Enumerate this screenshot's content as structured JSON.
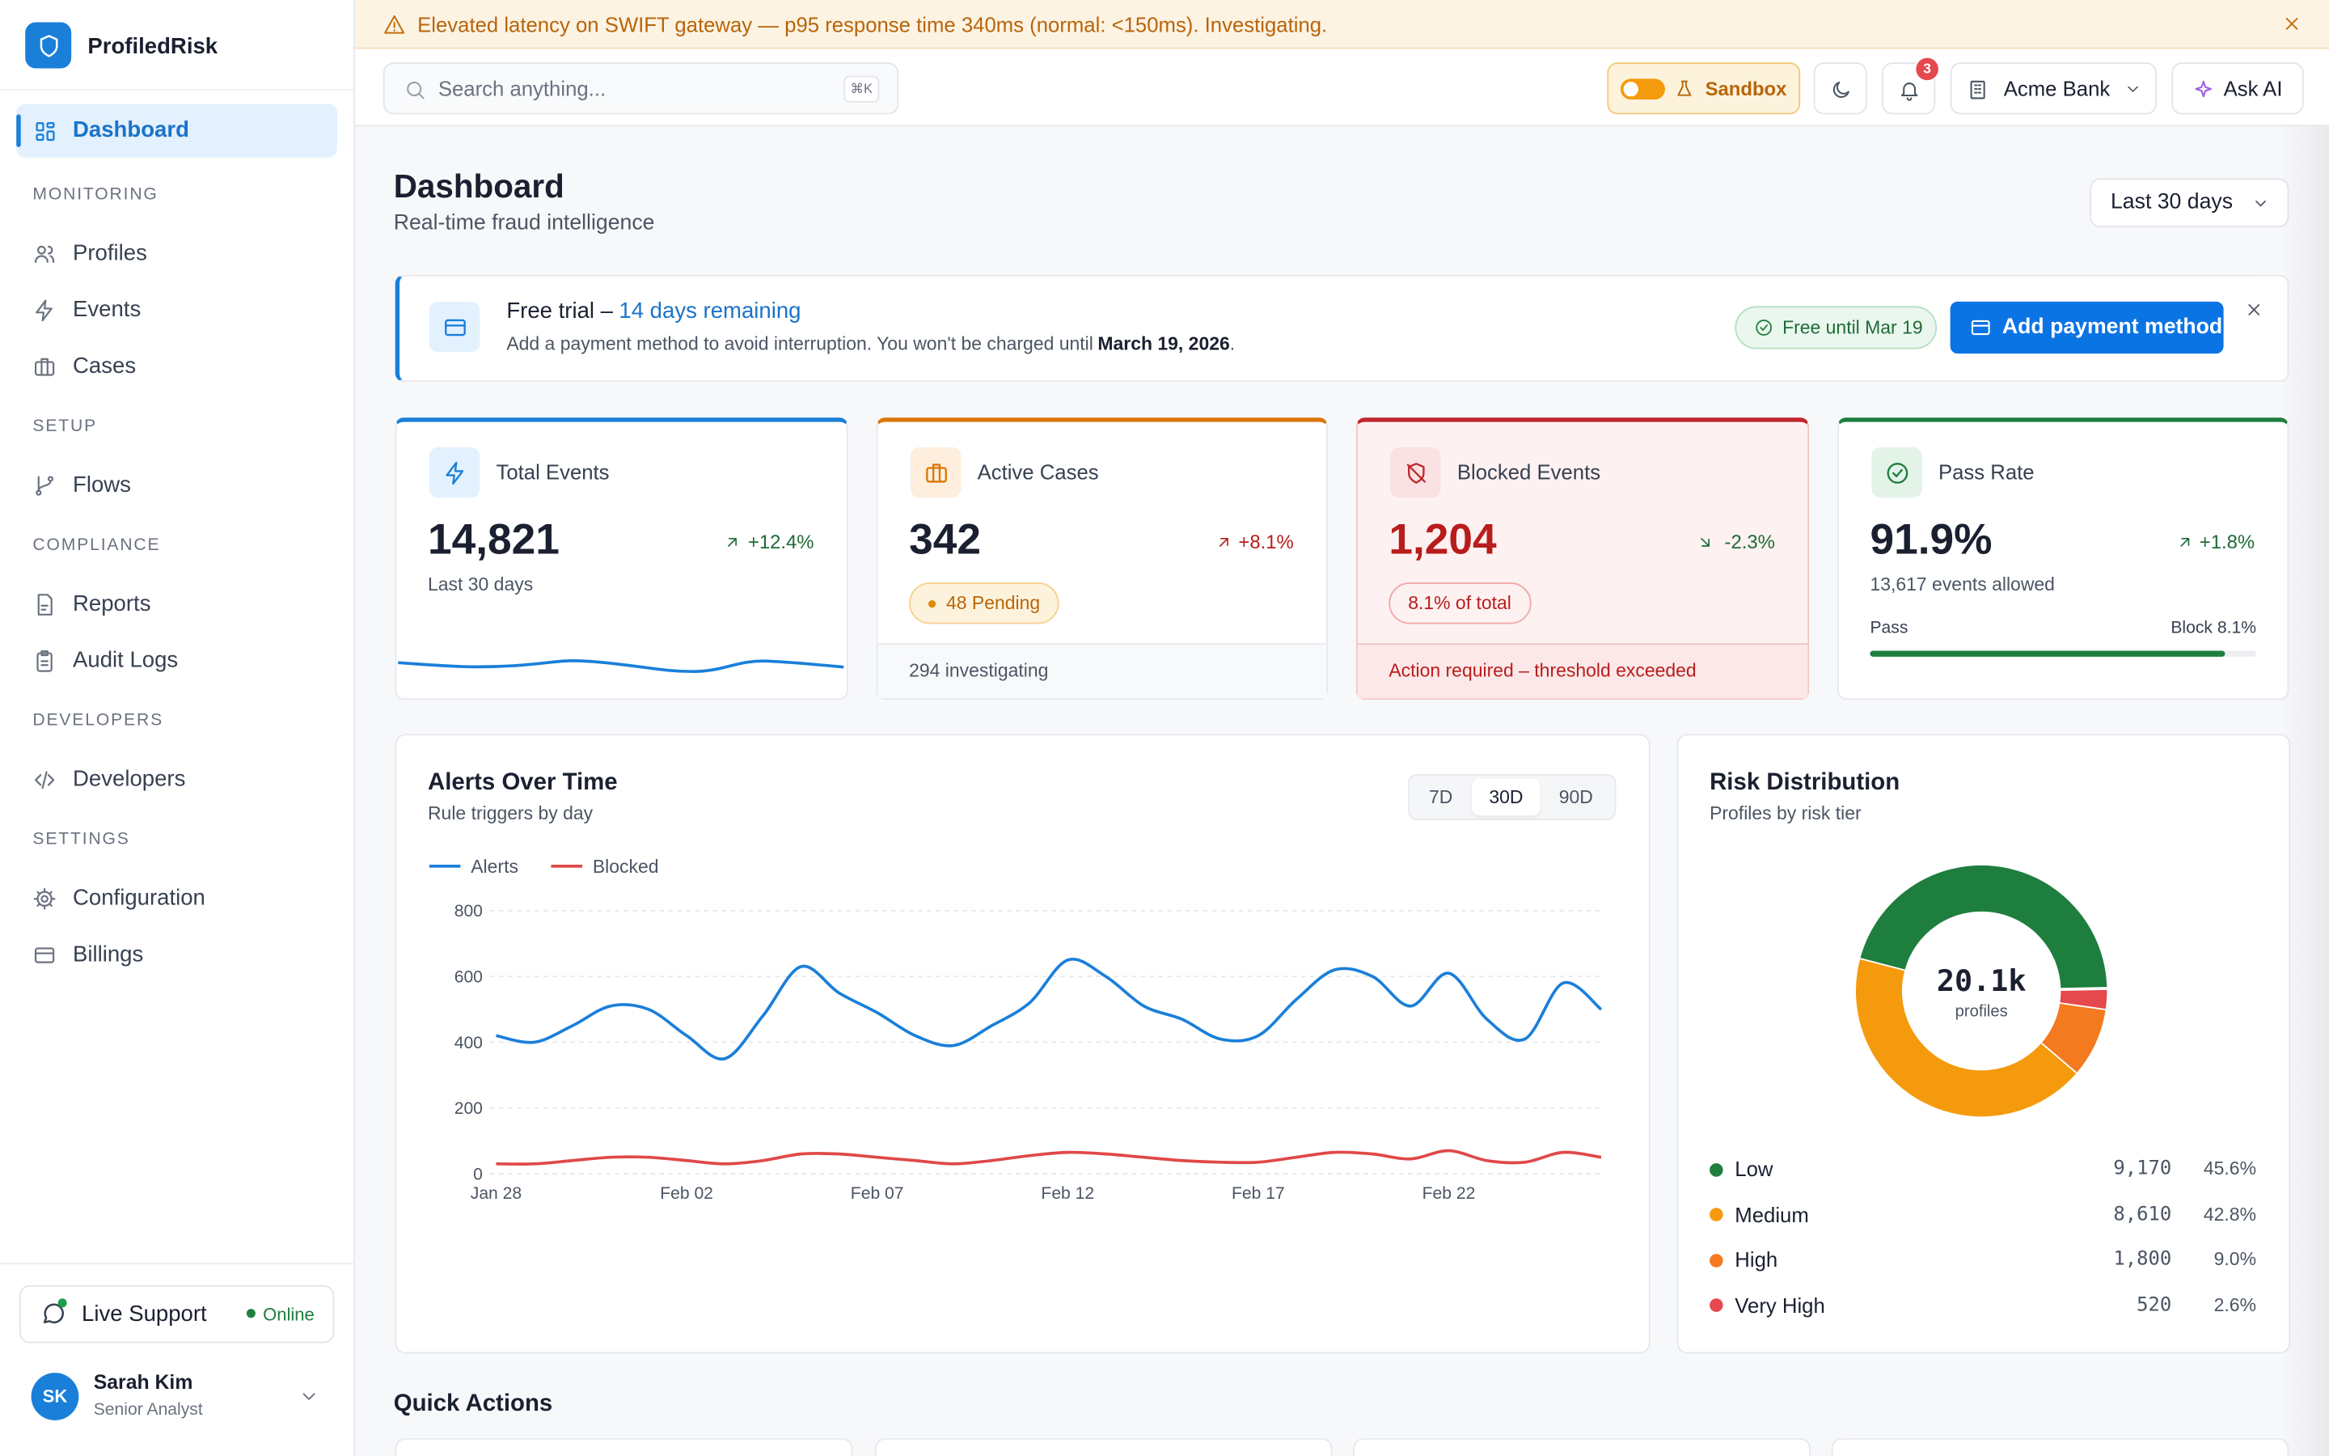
{
  "alert_banner": {
    "text": "Elevated latency on SWIFT gateway — p95 response time 340ms (normal: <150ms). Investigating."
  },
  "sidebar": {
    "brand": "ProfiledRisk",
    "active": "Dashboard",
    "sections": [
      {
        "title": "MONITORING",
        "items": [
          "Profiles",
          "Events",
          "Cases"
        ]
      },
      {
        "title": "SETUP",
        "items": [
          "Flows"
        ]
      },
      {
        "title": "COMPLIANCE",
        "items": [
          "Reports",
          "Audit Logs"
        ]
      },
      {
        "title": "DEVELOPERS",
        "items": [
          "Developers"
        ]
      },
      {
        "title": "SETTINGS",
        "items": [
          "Configuration",
          "Billings"
        ]
      }
    ],
    "support": {
      "label": "Live Support",
      "status": "Online"
    },
    "user": {
      "initials": "SK",
      "name": "Sarah Kim",
      "role": "Senior Analyst"
    }
  },
  "topbar": {
    "search": "Search anything...",
    "shortcut": "⌘K",
    "sandbox": "Sandbox",
    "notifications": 3,
    "org": "Acme Bank",
    "ask_ai": "Ask AI"
  },
  "header": {
    "title": "Dashboard",
    "subtitle": "Real-time fraud intelligence",
    "range": "Last 30 days"
  },
  "trial": {
    "title": "Free trial –",
    "highlight": "14 days remaining",
    "text": "Add a payment method to avoid interruption. You won't be charged until",
    "date": "March 19, 2026",
    "end": ".",
    "badge": "Free until Mar 19",
    "button": "Add payment method"
  },
  "stats": [
    {
      "label": "Total Events",
      "value": "14,821",
      "change": "+12.4%",
      "sub": "Last 30 days"
    },
    {
      "label": "Active Cases",
      "value": "342",
      "change": "+8.1%",
      "badge": "48 Pending",
      "footer": "294 investigating"
    },
    {
      "label": "Blocked Events",
      "value": "1,204",
      "change": "-2.3%",
      "badge": "8.1% of total",
      "footer": "Action required – threshold exceeded"
    },
    {
      "label": "Pass Rate",
      "value": "91.9%",
      "change": "+1.8%",
      "sub": "13,617 events allowed",
      "bar_left": "Pass",
      "bar_right": "Block 8.1%",
      "progress": 91.9
    }
  ],
  "chart_data": [
    {
      "type": "line",
      "title": "Alerts Over Time",
      "subtitle": "Rule triggers by day",
      "ranges": [
        "7D",
        "30D",
        "90D"
      ],
      "categories": [
        "Jan 28",
        null,
        null,
        null,
        null,
        "Feb 02",
        null,
        null,
        null,
        null,
        "Feb 07",
        null,
        null,
        null,
        null,
        "Feb 12",
        null,
        null,
        null,
        null,
        "Feb 17",
        null,
        null,
        null,
        null,
        "Feb 22",
        null,
        null,
        null,
        null
      ],
      "series": [
        {
          "name": "Alerts",
          "color": "#1a7fd9",
          "values": [
            420,
            400,
            450,
            510,
            500,
            420,
            350,
            480,
            630,
            550,
            490,
            420,
            390,
            450,
            520,
            650,
            600,
            510,
            470,
            410,
            420,
            530,
            620,
            600,
            510,
            610,
            470,
            410,
            580,
            500
          ]
        },
        {
          "name": "Blocked",
          "color": "#e04848",
          "values": [
            30,
            30,
            40,
            50,
            50,
            40,
            30,
            40,
            60,
            60,
            50,
            40,
            30,
            40,
            55,
            65,
            60,
            50,
            40,
            35,
            35,
            50,
            65,
            60,
            45,
            70,
            40,
            35,
            65,
            50
          ]
        }
      ],
      "ylim": [
        0,
        800
      ],
      "yticks": [
        0,
        200,
        400,
        600,
        800
      ],
      "grid": true
    },
    {
      "type": "donut",
      "title": "Risk Distribution",
      "subtitle": "Profiles by risk tier",
      "center_label": "20.1k",
      "center_sublabel": "profiles",
      "categories": [
        "Low",
        "Medium",
        "High",
        "Very High"
      ],
      "values": [
        9170,
        8610,
        1800,
        520
      ],
      "value_labels": [
        "9,170",
        "8,610",
        "1,800",
        "520"
      ],
      "percent_labels": [
        "45.6%",
        "42.8%",
        "9.0%",
        "2.6%"
      ],
      "colors": [
        "#1e7e3e",
        "#f59a0c",
        "#f47a1f",
        "#e5484d"
      ]
    }
  ],
  "quick_actions": {
    "title": "Quick Actions"
  }
}
